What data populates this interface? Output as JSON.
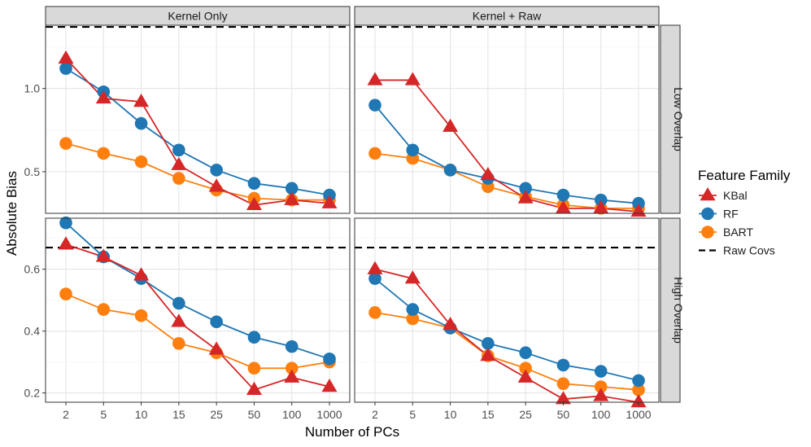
{
  "chart_data": {
    "type": "line",
    "x_categories": [
      "2",
      "5",
      "10",
      "15",
      "25",
      "50",
      "100",
      "1000"
    ],
    "xlabel": "Number of PCs",
    "ylabel": "Absolute Bias",
    "facet_columns": [
      "Kernel Only",
      "Kernel + Raw"
    ],
    "facet_rows": [
      {
        "label": "Low Overlap",
        "ylim": [
          0.25,
          1.38
        ],
        "yticks": [
          0.5,
          1.0
        ],
        "ytick_labels": [
          "0.5",
          "1.0"
        ]
      },
      {
        "label": "High Overlap",
        "ylim": [
          0.17,
          0.765
        ],
        "yticks": [
          0.2,
          0.4,
          0.6
        ],
        "ytick_labels": [
          "0.2",
          "0.4",
          "0.6"
        ]
      }
    ],
    "legend": {
      "title": "Feature Family",
      "position": "right",
      "entries": [
        {
          "name": "KBal",
          "color": "#d62728",
          "shape": "triangle"
        },
        {
          "name": "RF",
          "color": "#1f77b4",
          "shape": "circle"
        },
        {
          "name": "BART",
          "color": "#ff7f0e",
          "shape": "circle"
        },
        {
          "name": "Raw Covs",
          "color": "#000000",
          "shape": "dashed-line"
        }
      ]
    },
    "grid": true,
    "panels": [
      {
        "column": "Kernel Only",
        "row": "Low Overlap",
        "raw_covs": 1.37,
        "series": [
          {
            "name": "KBal",
            "values": [
              1.18,
              0.94,
              0.92,
              0.54,
              0.41,
              0.3,
              0.33,
              0.31
            ]
          },
          {
            "name": "RF",
            "values": [
              1.12,
              0.98,
              0.79,
              0.63,
              0.51,
              0.43,
              0.4,
              0.36
            ]
          },
          {
            "name": "BART",
            "values": [
              0.67,
              0.61,
              0.56,
              0.46,
              0.39,
              0.34,
              0.33,
              0.33
            ]
          }
        ]
      },
      {
        "column": "Kernel + Raw",
        "row": "Low Overlap",
        "raw_covs": 1.37,
        "series": [
          {
            "name": "KBal",
            "values": [
              1.05,
              1.05,
              0.77,
              0.48,
              0.34,
              0.28,
              0.28,
              0.26
            ]
          },
          {
            "name": "RF",
            "values": [
              0.9,
              0.63,
              0.51,
              0.46,
              0.4,
              0.36,
              0.33,
              0.31
            ]
          },
          {
            "name": "BART",
            "values": [
              0.61,
              0.58,
              0.51,
              0.41,
              0.35,
              0.3,
              0.28,
              0.28
            ]
          }
        ]
      },
      {
        "column": "Kernel Only",
        "row": "High Overlap",
        "raw_covs": 0.67,
        "series": [
          {
            "name": "KBal",
            "values": [
              0.68,
              0.64,
              0.58,
              0.43,
              0.34,
              0.21,
              0.25,
              0.22
            ]
          },
          {
            "name": "RF",
            "values": [
              0.75,
              0.64,
              0.57,
              0.49,
              0.43,
              0.38,
              0.35,
              0.31
            ]
          },
          {
            "name": "BART",
            "values": [
              0.52,
              0.47,
              0.45,
              0.36,
              0.33,
              0.28,
              0.28,
              0.3
            ]
          }
        ]
      },
      {
        "column": "Kernel + Raw",
        "row": "High Overlap",
        "raw_covs": 0.67,
        "series": [
          {
            "name": "KBal",
            "values": [
              0.6,
              0.57,
              0.42,
              0.32,
              0.25,
              0.18,
              0.19,
              0.17
            ]
          },
          {
            "name": "RF",
            "values": [
              0.57,
              0.47,
              0.41,
              0.36,
              0.33,
              0.29,
              0.27,
              0.24
            ]
          },
          {
            "name": "BART",
            "values": [
              0.46,
              0.44,
              0.41,
              0.32,
              0.28,
              0.23,
              0.22,
              0.21
            ]
          }
        ]
      }
    ]
  }
}
